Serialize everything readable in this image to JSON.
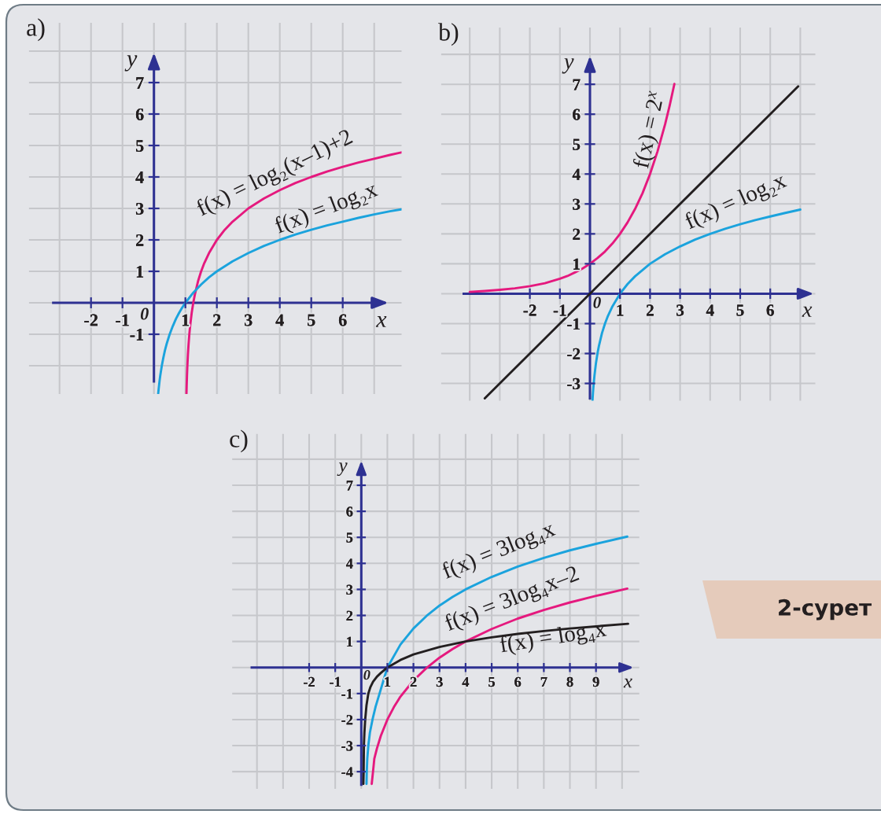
{
  "chart_data": [
    {
      "type": "line",
      "title": "a)",
      "xlabel": "x",
      "ylabel": "y",
      "xlim": [
        -3.97,
        7.87
      ],
      "ylim": [
        -2.9,
        8.9
      ],
      "xticks": [
        -2,
        -1,
        1,
        2,
        3,
        4,
        5,
        6
      ],
      "yticks": [
        -1,
        1,
        2,
        3,
        4,
        5,
        6,
        7
      ],
      "grid": true,
      "line_style": "solid",
      "annotations": [
        "0"
      ],
      "series": [
        {
          "name": "f(x) = log₂(x–1)+2",
          "color": "#e5197e",
          "x": [
            1.034,
            1.04,
            1.05,
            1.06,
            1.08,
            1.1,
            1.125,
            1.15,
            1.2,
            1.25,
            1.3,
            1.4,
            1.5,
            1.6,
            1.75,
            2,
            2.25,
            2.5,
            3,
            3.5,
            4,
            4.5,
            5,
            5.5,
            6,
            6.5,
            7,
            7.5,
            7.86
          ],
          "values": [
            -2.88,
            -2.64,
            -2.32,
            -2.06,
            -1.64,
            -1.32,
            -1,
            -0.74,
            -0.32,
            0,
            0.26,
            0.68,
            1,
            1.26,
            1.58,
            2,
            2.32,
            2.58,
            3,
            3.32,
            3.58,
            3.81,
            4,
            4.17,
            4.32,
            4.46,
            4.58,
            4.7,
            4.78
          ]
        },
        {
          "name": "f(x) = log₂x",
          "color": "#1ba3dd",
          "x": [
            0.136,
            0.15,
            0.18,
            0.2,
            0.25,
            0.3,
            0.35,
            0.4,
            0.5,
            0.6,
            0.7,
            0.8,
            0.9,
            1,
            1.25,
            1.5,
            1.75,
            2,
            2.5,
            3,
            3.5,
            4,
            4.5,
            5,
            5.5,
            6,
            6.5,
            7,
            7.5,
            7.86
          ],
          "values": [
            -2.88,
            -2.74,
            -2.47,
            -2.32,
            -2,
            -1.74,
            -1.51,
            -1.32,
            -1,
            -0.74,
            -0.51,
            -0.32,
            -0.15,
            0,
            0.32,
            0.58,
            0.81,
            1,
            1.32,
            1.58,
            1.81,
            2,
            2.17,
            2.32,
            2.46,
            2.58,
            2.7,
            2.81,
            2.91,
            2.97
          ]
        }
      ]
    },
    {
      "type": "line",
      "title": "b)",
      "xlabel": "x",
      "ylabel": "y",
      "xlim": [
        -4.95,
        7.5
      ],
      "ylim": [
        -3.58,
        8.9
      ],
      "xticks": [
        -2,
        -1,
        1,
        2,
        3,
        4,
        5,
        6
      ],
      "yticks": [
        -3,
        -2,
        -1,
        1,
        2,
        3,
        4,
        5,
        6,
        7
      ],
      "grid": true,
      "line_style": "solid",
      "annotations": [
        "0"
      ],
      "series": [
        {
          "name": "f(x) = 2$^{x}$",
          "color": "#e5197e",
          "x": [
            -4,
            -3.5,
            -3,
            -2.5,
            -2,
            -1.5,
            -1,
            -0.75,
            -0.5,
            -0.25,
            0,
            0.25,
            0.5,
            0.75,
            1,
            1.25,
            1.5,
            1.75,
            2,
            2.25,
            2.5,
            2.65,
            2.81
          ],
          "values": [
            0.06,
            0.09,
            0.13,
            0.18,
            0.25,
            0.35,
            0.5,
            0.59,
            0.71,
            0.84,
            1,
            1.19,
            1.41,
            1.68,
            2,
            2.38,
            2.83,
            3.36,
            4,
            4.76,
            5.66,
            6.28,
            7.01
          ]
        },
        {
          "color": "#231f20",
          "x": [
            -3.5,
            6.93
          ],
          "values": [
            -3.5,
            6.93
          ]
        },
        {
          "name": "f(x) = log₂x",
          "color": "#1ba3dd",
          "x": [
            0.085,
            0.1,
            0.125,
            0.15,
            0.2,
            0.25,
            0.3,
            0.4,
            0.5,
            0.6,
            0.75,
            1,
            1.25,
            1.5,
            2,
            2.5,
            3,
            3.5,
            4,
            4.5,
            5,
            5.5,
            6,
            6.5,
            7
          ],
          "values": [
            -3.56,
            -3.32,
            -3,
            -2.74,
            -2.32,
            -2,
            -1.74,
            -1.32,
            -1,
            -0.74,
            -0.42,
            0,
            0.32,
            0.58,
            1,
            1.32,
            1.58,
            1.81,
            2,
            2.17,
            2.32,
            2.46,
            2.58,
            2.7,
            2.81
          ]
        }
      ]
    },
    {
      "type": "line",
      "title": "c)",
      "xlabel": "x",
      "ylabel": "y",
      "xlim": [
        -4.95,
        10.66
      ],
      "ylim": [
        -4.66,
        8.97
      ],
      "xticks": [
        -2,
        -1,
        1,
        2,
        3,
        4,
        5,
        6,
        7,
        8,
        9
      ],
      "yticks": [
        -4,
        -3,
        -2,
        -1,
        1,
        2,
        3,
        4,
        5,
        6,
        7
      ],
      "grid": true,
      "line_style": "solid",
      "annotations": [
        "0",
        "2-сурет"
      ],
      "series": [
        {
          "name": "f(x) = 3log₄x",
          "color": "#1ba3dd",
          "x": [
            0.2,
            0.21,
            0.23,
            0.27,
            0.33,
            0.43,
            0.55,
            0.7,
            0.85,
            1,
            1.5,
            2,
            2.5,
            3,
            3.5,
            4,
            5,
            6,
            7,
            8,
            9,
            10.2
          ],
          "values": [
            -4.47,
            -4,
            -3.5,
            -3,
            -2.5,
            -2,
            -1.5,
            -1,
            -0.5,
            0,
            0.88,
            1.5,
            1.98,
            2.38,
            2.71,
            3,
            3.48,
            3.88,
            4.21,
            4.5,
            4.75,
            5.03
          ]
        },
        {
          "name": "f(x) = 3log₄x–2",
          "color": "#e5197e",
          "x": [
            0.4,
            0.45,
            0.5,
            0.6,
            0.75,
            1,
            1.25,
            1.5,
            2,
            2.5,
            3,
            3.5,
            4,
            5,
            6,
            7,
            8,
            9,
            10.2
          ],
          "values": [
            -4.47,
            -4,
            -3.5,
            -3.11,
            -2.62,
            -2,
            -1.52,
            -1.12,
            -0.5,
            -0.02,
            0.38,
            0.71,
            1,
            1.48,
            1.88,
            2.21,
            2.5,
            2.75,
            3.03
          ]
        },
        {
          "name": "f(x) = log₄x",
          "color": "#231f20",
          "x": [
            0.08,
            0.09,
            0.1,
            0.12,
            0.15,
            0.2,
            0.27,
            0.35,
            0.45,
            0.6,
            0.75,
            1,
            1.5,
            2,
            3,
            4,
            5,
            6,
            7,
            8,
            9,
            10.23
          ],
          "values": [
            -4.47,
            -4,
            -3,
            -2.5,
            -2,
            -1.45,
            -1,
            -0.75,
            -0.55,
            -0.35,
            -0.21,
            0,
            0.29,
            0.5,
            0.79,
            1,
            1.16,
            1.29,
            1.4,
            1.5,
            1.58,
            1.68
          ]
        }
      ]
    }
  ]
}
